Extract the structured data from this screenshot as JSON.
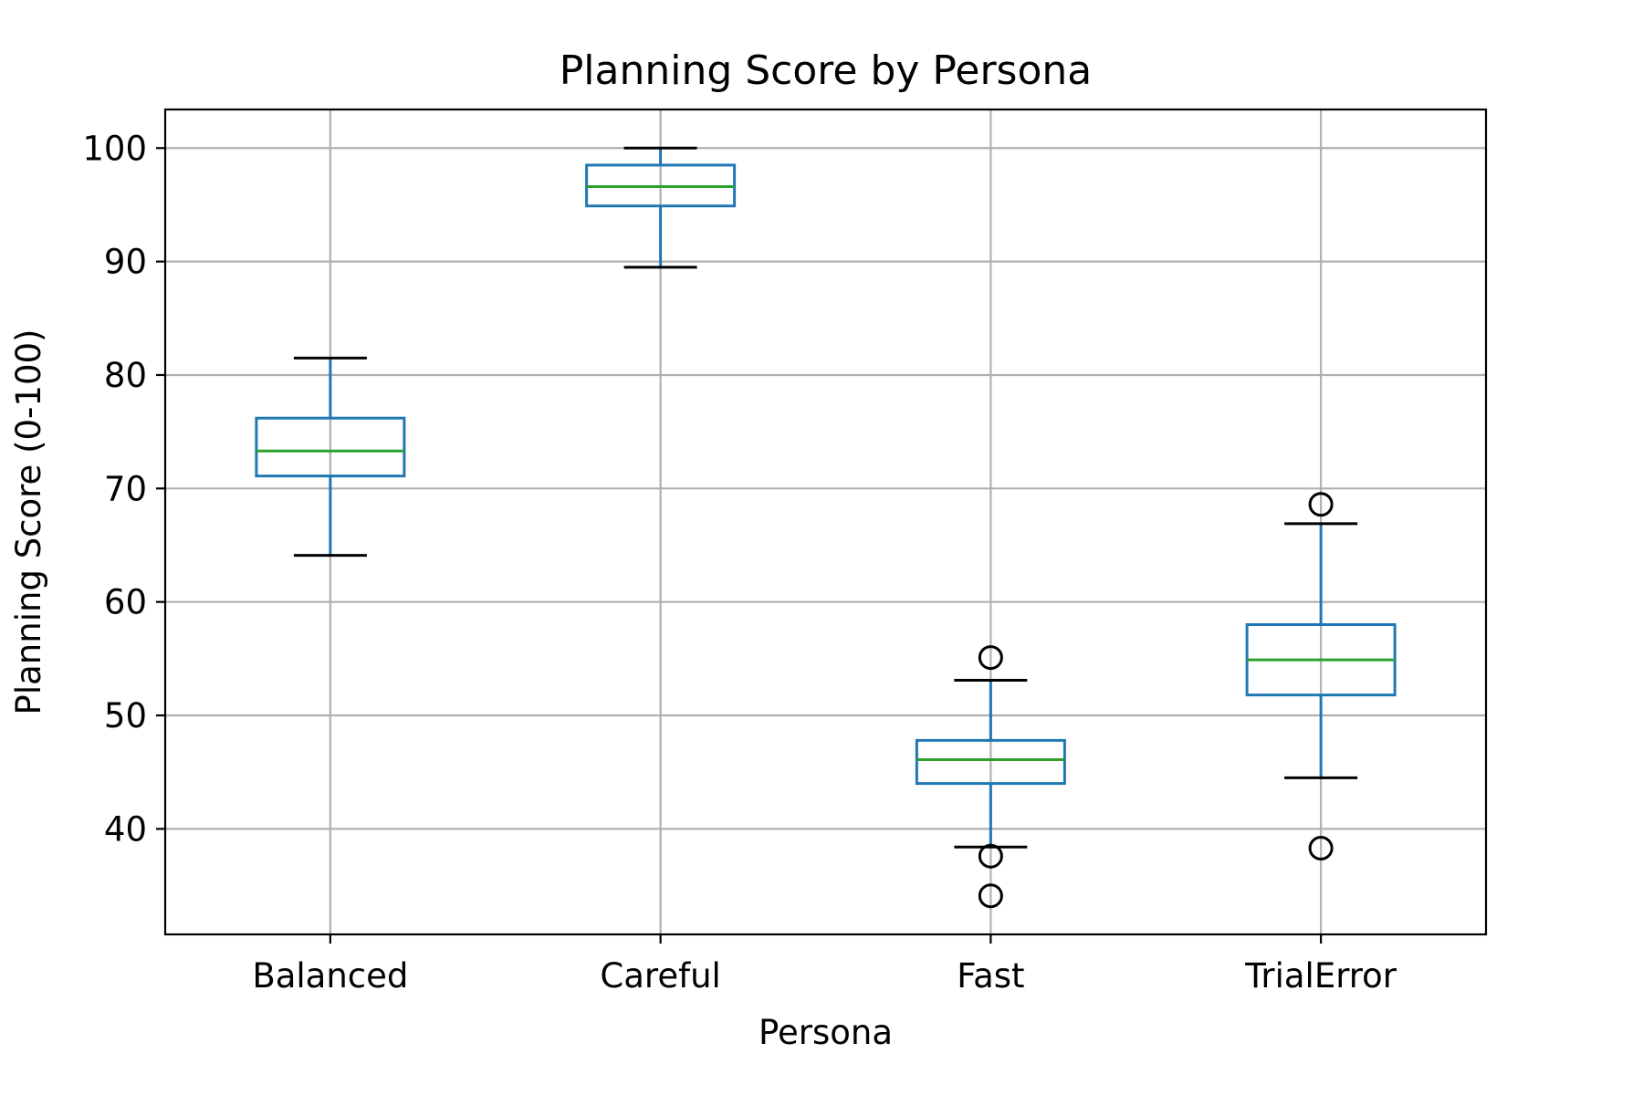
{
  "chart_data": {
    "type": "box",
    "title": "Planning Score by Persona",
    "xlabel": "Persona",
    "ylabel": "Planning Score (0-100)",
    "ylim": [
      30.7,
      103.4
    ],
    "yticks": [
      40,
      50,
      60,
      70,
      80,
      90,
      100
    ],
    "grid": true,
    "categories": [
      "Balanced",
      "Careful",
      "Fast",
      "TrialError"
    ],
    "boxes": [
      {
        "category": "Balanced",
        "whisker_low": 64.1,
        "q1": 71.1,
        "median": 73.3,
        "q3": 76.2,
        "whisker_high": 81.5,
        "outliers": []
      },
      {
        "category": "Careful",
        "whisker_low": 89.5,
        "q1": 94.9,
        "median": 96.6,
        "q3": 98.5,
        "whisker_high": 100.0,
        "outliers": []
      },
      {
        "category": "Fast",
        "whisker_low": 38.4,
        "q1": 44.0,
        "median": 46.1,
        "q3": 47.8,
        "whisker_high": 53.1,
        "outliers": [
          55.1,
          37.6,
          34.1
        ]
      },
      {
        "category": "TrialError",
        "whisker_low": 44.5,
        "q1": 51.8,
        "median": 54.9,
        "q3": 58.0,
        "whisker_high": 66.9,
        "outliers": [
          68.6,
          38.3
        ]
      }
    ],
    "colors": {
      "box": "#1f77b4",
      "median": "#2ca02c",
      "cap": "#000000",
      "outlier": "#000000",
      "grid": "#b0b0b0",
      "axes": "#000000"
    }
  }
}
